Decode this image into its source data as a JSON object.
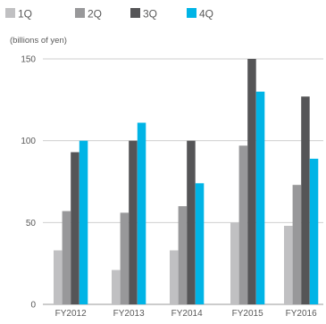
{
  "chart_data": {
    "type": "bar",
    "unit_label": "(billions of yen)",
    "categories": [
      "FY2012",
      "FY2013",
      "FY2014",
      "FY2015",
      "FY2016"
    ],
    "series": [
      {
        "name": "1Q",
        "color": "#c0c0c2",
        "values": [
          33,
          21,
          33,
          50,
          48
        ]
      },
      {
        "name": "2Q",
        "color": "#98989a",
        "values": [
          57,
          56,
          60,
          97,
          73
        ]
      },
      {
        "name": "3Q",
        "color": "#555557",
        "values": [
          93,
          100,
          100,
          150,
          127
        ]
      },
      {
        "name": "4Q",
        "color": "#00b4e6",
        "values": [
          100,
          111,
          74,
          130,
          89
        ]
      }
    ],
    "ylim": [
      0,
      150
    ],
    "yticks": [
      0,
      50,
      100,
      150
    ],
    "grid": true,
    "legend_position": "top-left"
  }
}
